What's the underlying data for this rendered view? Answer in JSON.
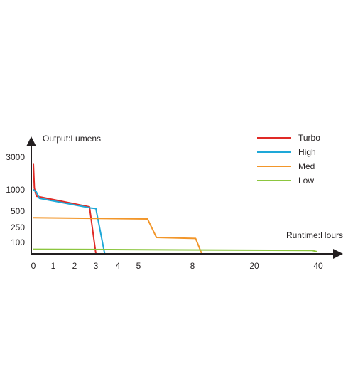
{
  "chart_data": {
    "type": "line",
    "ylabel": "Output:Lumens",
    "xlabel": "Runtime:Hours",
    "y_ticks": [
      {
        "value": 3000,
        "label": "3000"
      },
      {
        "value": 1000,
        "label": "1000"
      },
      {
        "value": 500,
        "label": "500"
      },
      {
        "value": 250,
        "label": "250"
      },
      {
        "value": 100,
        "label": "100"
      }
    ],
    "x_ticks": [
      {
        "value": 0,
        "label": "0"
      },
      {
        "value": 1,
        "label": "1"
      },
      {
        "value": 2,
        "label": "2"
      },
      {
        "value": 3,
        "label": "3"
      },
      {
        "value": 4,
        "label": "4"
      },
      {
        "value": 5,
        "label": "5"
      },
      {
        "value": 8,
        "label": "8"
      },
      {
        "value": 20,
        "label": "20"
      },
      {
        "value": 40,
        "label": "40"
      }
    ],
    "legend_position": "top-right",
    "grid": false,
    "series": [
      {
        "name": "Turbo",
        "color": "#e02a26",
        "points": [
          [
            0,
            2600
          ],
          [
            0.05,
            1100
          ],
          [
            0.15,
            850
          ],
          [
            2.7,
            600
          ],
          [
            3.0,
            0
          ]
        ]
      },
      {
        "name": "High",
        "color": "#1ea8d8",
        "points": [
          [
            0,
            1000
          ],
          [
            0.15,
            950
          ],
          [
            0.3,
            800
          ],
          [
            2.8,
            570
          ],
          [
            3.0,
            560
          ],
          [
            3.4,
            0
          ]
        ]
      },
      {
        "name": "Med",
        "color": "#f2962a",
        "points": [
          [
            0,
            400
          ],
          [
            5.5,
            380
          ],
          [
            6.0,
            150
          ],
          [
            8.6,
            140
          ],
          [
            9.8,
            0
          ]
        ]
      },
      {
        "name": "Low",
        "color": "#8cc63f",
        "points": [
          [
            0,
            40
          ],
          [
            38,
            30
          ],
          [
            39.5,
            20
          ]
        ]
      }
    ]
  }
}
